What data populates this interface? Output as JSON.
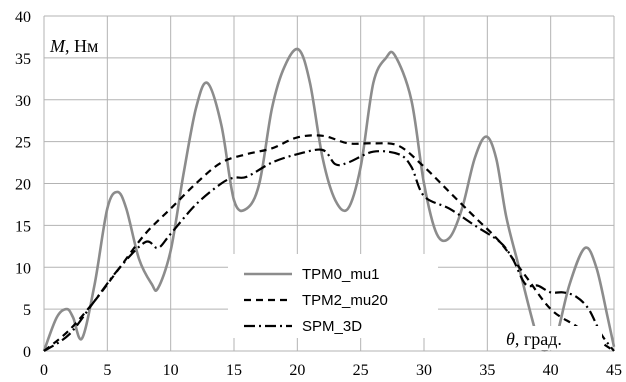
{
  "chart_data": {
    "type": "line",
    "xlabel_var": "θ",
    "xlabel_unit": ", град.",
    "ylabel_var": "M",
    "ylabel_unit": ", Нм",
    "xlim": [
      0,
      45
    ],
    "ylim": [
      0,
      40
    ],
    "xticks": [
      0,
      5,
      10,
      15,
      20,
      25,
      30,
      35,
      40,
      45
    ],
    "yticks": [
      0,
      5,
      10,
      15,
      20,
      25,
      30,
      35,
      40
    ],
    "grid": true,
    "legend_position": "bottom-center",
    "series": [
      {
        "name": "TPM0_mu1",
        "color": "#8c8c8c",
        "style": "solid",
        "x": [
          0,
          1,
          1.8,
          2.3,
          3,
          4,
          5,
          5.8,
          6.5,
          7.5,
          8.5,
          9,
          10,
          11,
          12,
          12.9,
          14,
          15,
          16,
          17,
          18,
          19,
          20.1,
          21,
          22,
          23,
          24,
          25,
          26,
          27,
          27.7,
          29,
          30,
          31,
          32,
          33,
          34,
          34.9,
          35.7,
          36.5,
          37.5,
          38.5,
          39.2,
          39.8,
          40.5,
          41.5,
          42.7,
          43.6,
          44.5,
          45
        ],
        "y": [
          0,
          4,
          5,
          4,
          1.5,
          8,
          17,
          19,
          17,
          11,
          8,
          7.5,
          12,
          21,
          29,
          32,
          27,
          18,
          17,
          20,
          29,
          34,
          36,
          32,
          23,
          18,
          17,
          22,
          32,
          35,
          35.3,
          30,
          20,
          14,
          13.5,
          17,
          23,
          25.6,
          23,
          16,
          10,
          4,
          0.5,
          0.3,
          2,
          8,
          12.3,
          10,
          4,
          0.5
        ]
      },
      {
        "name": "TPM2_mu20",
        "color": "#000000",
        "style": "dashed",
        "x": [
          0,
          2,
          4,
          6,
          8,
          10,
          12,
          14,
          16,
          18,
          20,
          22,
          24,
          26,
          28,
          30,
          32,
          34,
          36,
          38,
          40,
          42,
          44,
          45
        ],
        "y": [
          0,
          2.5,
          6,
          10,
          14,
          17,
          20,
          22.5,
          23.5,
          24.2,
          25.5,
          25.7,
          24.8,
          24.8,
          24.5,
          22,
          19,
          16,
          13,
          9,
          5,
          3,
          1,
          0
        ]
      },
      {
        "name": "SPM_3D",
        "color": "#000000",
        "style": "dashdot",
        "x": [
          0,
          2,
          4,
          6,
          8,
          9,
          10,
          12,
          14,
          15,
          16,
          18,
          20,
          22,
          23,
          24,
          26,
          28,
          29,
          30,
          32,
          34,
          36,
          37,
          38,
          39,
          40,
          41,
          42,
          43,
          44,
          45
        ],
        "y": [
          0,
          2,
          6,
          10,
          13,
          12.3,
          14,
          17.5,
          20,
          20.7,
          20.8,
          22.5,
          23.5,
          24,
          22.3,
          22.5,
          23.8,
          23.5,
          22,
          18.5,
          17,
          15,
          13,
          11,
          8,
          7.8,
          7,
          7,
          6.5,
          5,
          2,
          0
        ]
      }
    ]
  }
}
